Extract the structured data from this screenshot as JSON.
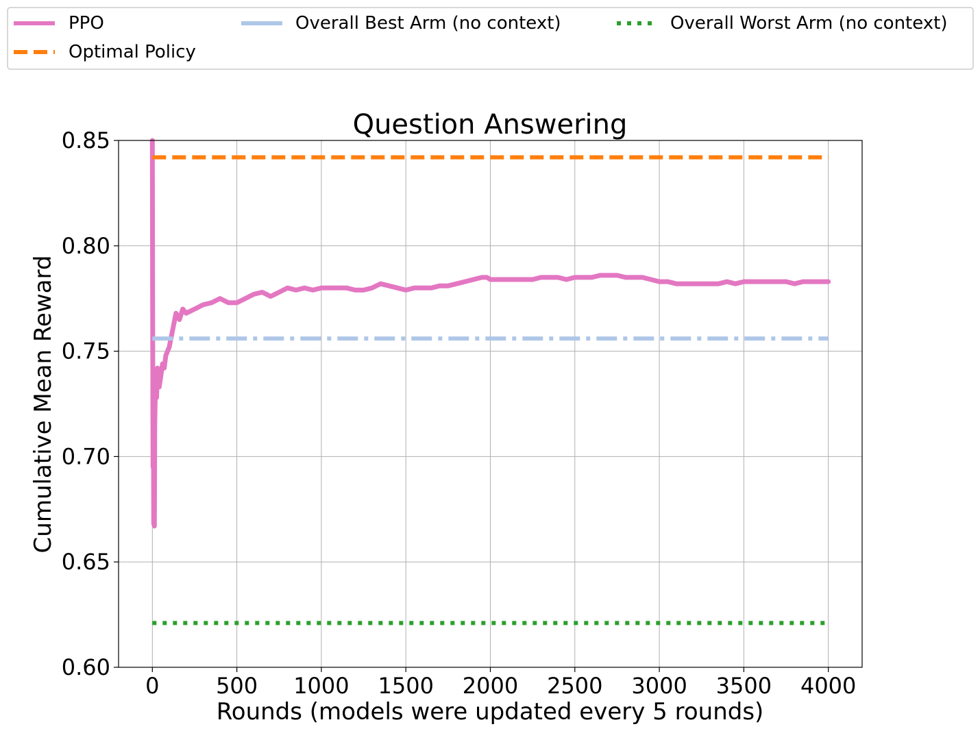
{
  "chart_data": {
    "type": "line",
    "title": "Question Answering",
    "xlabel": "Rounds (models were updated every 5 rounds)",
    "ylabel": "Cumulative Mean Reward",
    "xlim": [
      -200,
      4200
    ],
    "ylim": [
      0.6,
      0.85
    ],
    "xticks": [
      0,
      500,
      1000,
      1500,
      2000,
      2500,
      3000,
      3500,
      4000
    ],
    "xtick_labels": [
      "0",
      "500",
      "1000",
      "1500",
      "2000",
      "2500",
      "3000",
      "3500",
      "4000"
    ],
    "yticks": [
      0.6,
      0.65,
      0.7,
      0.75,
      0.8,
      0.85
    ],
    "ytick_labels": [
      "0.60",
      "0.65",
      "0.70",
      "0.75",
      "0.80",
      "0.85"
    ],
    "grid": true,
    "legend_position": "top (above plot)",
    "legend": [
      "PPO",
      "Optimal Policy",
      "Overall Best Arm (no context)",
      "Overall Worst Arm (no context)"
    ],
    "series": [
      {
        "name": "PPO",
        "color": "#e377c2",
        "style": "solid",
        "x": [
          0,
          2,
          4,
          6,
          8,
          10,
          12,
          14,
          16,
          20,
          25,
          30,
          40,
          50,
          60,
          70,
          80,
          90,
          100,
          120,
          140,
          160,
          180,
          200,
          250,
          300,
          350,
          400,
          450,
          500,
          550,
          600,
          650,
          700,
          750,
          800,
          850,
          900,
          950,
          1000,
          1050,
          1100,
          1150,
          1200,
          1250,
          1300,
          1350,
          1400,
          1450,
          1500,
          1550,
          1600,
          1650,
          1700,
          1750,
          1800,
          1850,
          1900,
          1950,
          1980,
          2000,
          2050,
          2100,
          2150,
          2200,
          2250,
          2300,
          2350,
          2400,
          2450,
          2500,
          2550,
          2600,
          2650,
          2700,
          2750,
          2800,
          2850,
          2900,
          2950,
          3000,
          3050,
          3100,
          3150,
          3200,
          3250,
          3300,
          3350,
          3400,
          3450,
          3500,
          3550,
          3600,
          3650,
          3700,
          3750,
          3800,
          3850,
          3900,
          3950,
          4000
        ],
        "y": [
          0.85,
          0.76,
          0.695,
          0.725,
          0.668,
          0.7,
          0.667,
          0.715,
          0.725,
          0.735,
          0.728,
          0.742,
          0.733,
          0.738,
          0.744,
          0.742,
          0.748,
          0.75,
          0.752,
          0.76,
          0.768,
          0.765,
          0.77,
          0.768,
          0.77,
          0.772,
          0.773,
          0.775,
          0.773,
          0.773,
          0.775,
          0.777,
          0.778,
          0.776,
          0.778,
          0.78,
          0.779,
          0.78,
          0.779,
          0.78,
          0.78,
          0.78,
          0.78,
          0.779,
          0.779,
          0.78,
          0.782,
          0.781,
          0.78,
          0.779,
          0.78,
          0.78,
          0.78,
          0.781,
          0.781,
          0.782,
          0.783,
          0.784,
          0.785,
          0.785,
          0.784,
          0.784,
          0.784,
          0.784,
          0.784,
          0.784,
          0.785,
          0.785,
          0.785,
          0.784,
          0.785,
          0.785,
          0.785,
          0.786,
          0.786,
          0.786,
          0.785,
          0.785,
          0.785,
          0.784,
          0.783,
          0.783,
          0.782,
          0.782,
          0.782,
          0.782,
          0.782,
          0.782,
          0.783,
          0.782,
          0.783,
          0.783,
          0.783,
          0.783,
          0.783,
          0.783,
          0.782,
          0.783,
          0.783,
          0.783,
          0.783
        ]
      },
      {
        "name": "Optimal Policy",
        "color": "#ff7f0e",
        "style": "dashed",
        "x": [
          0,
          4000
        ],
        "y": [
          0.842,
          0.842
        ]
      },
      {
        "name": "Overall Best Arm (no context)",
        "color": "#aec7e8",
        "style": "dashdot",
        "x": [
          0,
          4000
        ],
        "y": [
          0.756,
          0.756
        ]
      },
      {
        "name": "Overall Worst Arm (no context)",
        "color": "#2ca02c",
        "style": "dotted",
        "x": [
          0,
          4000
        ],
        "y": [
          0.621,
          0.621
        ]
      }
    ]
  }
}
